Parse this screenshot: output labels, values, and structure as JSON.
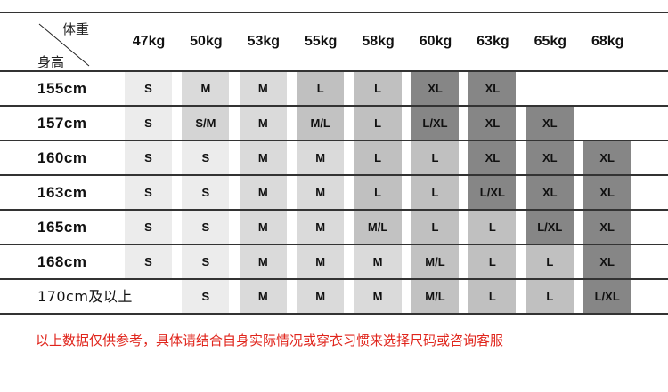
{
  "corner": {
    "weight_label": "体重",
    "height_label": "身高"
  },
  "weights": [
    "47kg",
    "50kg",
    "53kg",
    "55kg",
    "58kg",
    "60kg",
    "63kg",
    "65kg",
    "68kg"
  ],
  "rows": [
    {
      "height": "155cm",
      "sizes": [
        "S",
        "M",
        "M",
        "L",
        "L",
        "XL",
        "XL",
        "",
        ""
      ]
    },
    {
      "height": "157cm",
      "sizes": [
        "S",
        "S/M",
        "M",
        "M/L",
        "L",
        "L/XL",
        "XL",
        "XL",
        ""
      ]
    },
    {
      "height": "160cm",
      "sizes": [
        "S",
        "S",
        "M",
        "M",
        "L",
        "L",
        "XL",
        "XL",
        "XL"
      ]
    },
    {
      "height": "163cm",
      "sizes": [
        "S",
        "S",
        "M",
        "M",
        "L",
        "L",
        "L/XL",
        "XL",
        "XL"
      ]
    },
    {
      "height": "165cm",
      "sizes": [
        "S",
        "S",
        "M",
        "M",
        "M/L",
        "L",
        "L",
        "L/XL",
        "XL"
      ]
    },
    {
      "height": "168cm",
      "sizes": [
        "S",
        "S",
        "M",
        "M",
        "M",
        "M/L",
        "L",
        "L",
        "XL"
      ]
    },
    {
      "height": "170cm及以上",
      "sizes": [
        "",
        "S",
        "M",
        "M",
        "M",
        "M/L",
        "L",
        "L",
        "L/XL"
      ]
    }
  ],
  "size_colors": {
    "S": "#ececec",
    "S/M": "#d4d4d4",
    "M": "#dadada",
    "M/L": "#c2c2c2",
    "L": "#c0c0c0",
    "L/XL": "#868686",
    "XL": "#868686"
  },
  "note": "以上数据仅供参考，具体请结合自身实际情况或穿衣习惯来选择尺码或咨询客服",
  "note_color": "#e0251c"
}
